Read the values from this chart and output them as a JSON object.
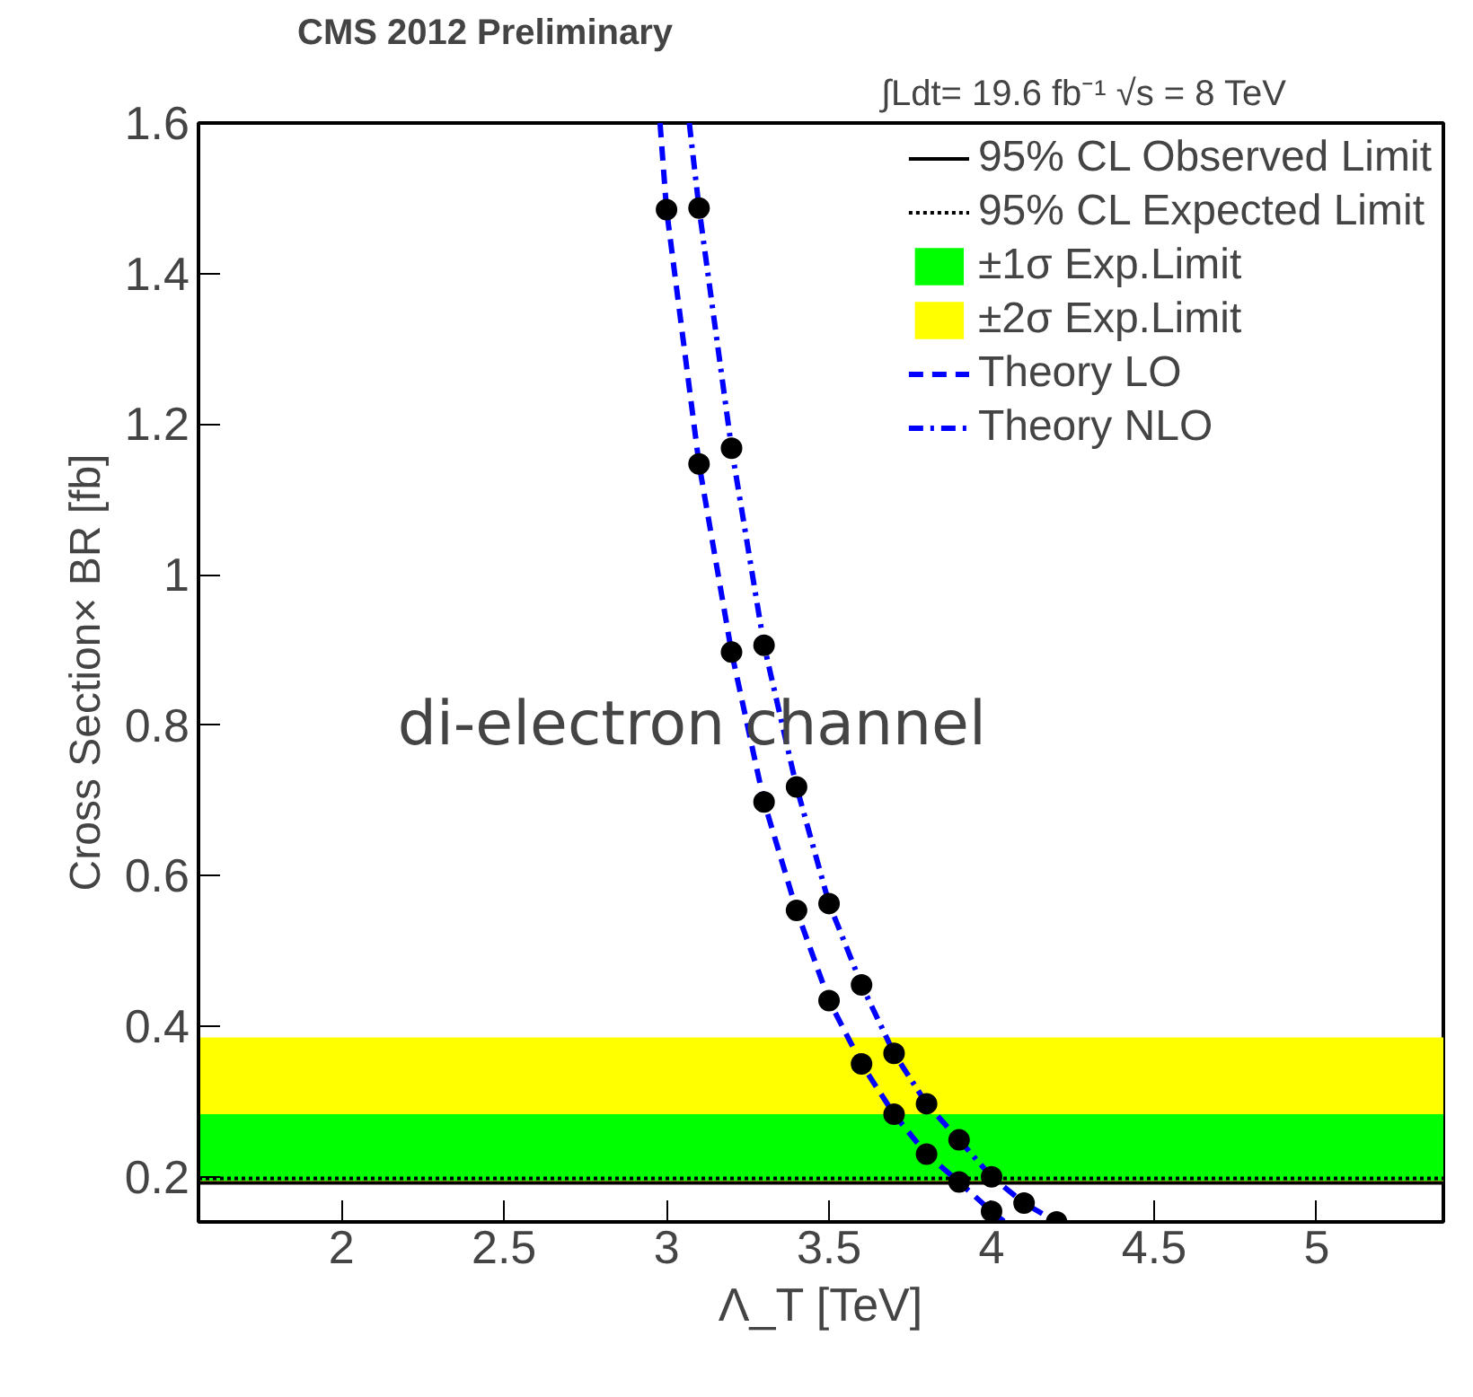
{
  "chart_data": {
    "type": "line",
    "title": "CMS 2012 Preliminary",
    "subtitle": "∫Ldt= 19.6 fb⁻¹ √s = 8 TeV",
    "xlabel": "Λ_T [TeV]",
    "ylabel": "Cross Section× BR [fb]",
    "annotations": [
      "di-electron channel"
    ],
    "xlim": [
      1.56,
      5.39
    ],
    "ylim": [
      0.14,
      1.6
    ],
    "xticks": [
      2,
      2.5,
      3,
      3.5,
      4,
      4.5,
      5
    ],
    "yticks": [
      0.2,
      0.4,
      0.6,
      {
        "value": 0.8,
        "label": "0.8"
      },
      {
        "value": 1.0,
        "label": "1"
      },
      1.2,
      1.4,
      1.6
    ],
    "grid": false,
    "legend": "top right",
    "ref_lines": [
      {
        "axis": "y",
        "value": 0.192,
        "label": "95% CL Observed Limit",
        "color": "#000000",
        "line_style": "solid"
      },
      {
        "axis": "y",
        "value": 0.198,
        "label": "95% CL Expected Limit",
        "color": "#000000",
        "line_style": "dotted"
      }
    ],
    "bands": [
      {
        "axis": "y",
        "from": 0.195,
        "to": 0.283,
        "label": "±1σ Exp.Limit",
        "color": "#00ff00"
      },
      {
        "axis": "y",
        "from": 0.19,
        "to": 0.385,
        "label": "±2σ Exp.Limit",
        "color": "#ffff00"
      }
    ],
    "series": [
      {
        "name": "Theory LO",
        "type": "line",
        "color": "#0000ff",
        "line_style": "dashed",
        "marker": "none",
        "x": [
          2.98,
          3.0,
          3.1,
          3.2,
          3.3,
          3.4,
          3.5,
          3.6,
          3.7,
          3.8,
          3.9,
          4.0,
          4.04
        ],
        "values": [
          1.6,
          1.485,
          1.147,
          0.897,
          0.698,
          0.554,
          0.434,
          0.35,
          0.283,
          0.23,
          0.193,
          0.154,
          0.14
        ]
      },
      {
        "name": "Theory NLO",
        "type": "line",
        "color": "#0000ff",
        "line_style": "dashdot",
        "marker": "none",
        "x": [
          3.07,
          3.1,
          3.2,
          3.3,
          3.4,
          3.5,
          3.6,
          3.7,
          3.8,
          3.9,
          4.0,
          4.1,
          4.2
        ],
        "values": [
          1.6,
          1.487,
          1.168,
          0.906,
          0.718,
          0.563,
          0.455,
          0.364,
          0.297,
          0.249,
          0.2,
          0.165,
          0.14
        ]
      },
      {
        "type": "scatter",
        "color": "#000000",
        "marker": "circle",
        "x": [
          3.0,
          3.1,
          3.2,
          3.3,
          3.4,
          3.5,
          3.6,
          3.7,
          3.8,
          3.9,
          4.0
        ],
        "values": [
          1.485,
          1.147,
          0.897,
          0.698,
          0.554,
          0.434,
          0.35,
          0.283,
          0.23,
          0.193,
          0.154
        ]
      },
      {
        "type": "scatter",
        "color": "#000000",
        "marker": "circle",
        "x": [
          3.1,
          3.2,
          3.3,
          3.4,
          3.5,
          3.6,
          3.7,
          3.8,
          3.9,
          4.0,
          4.1,
          4.2
        ],
        "values": [
          1.487,
          1.168,
          0.906,
          0.718,
          0.563,
          0.455,
          0.364,
          0.297,
          0.249,
          0.2,
          0.165,
          0.14
        ]
      }
    ]
  }
}
